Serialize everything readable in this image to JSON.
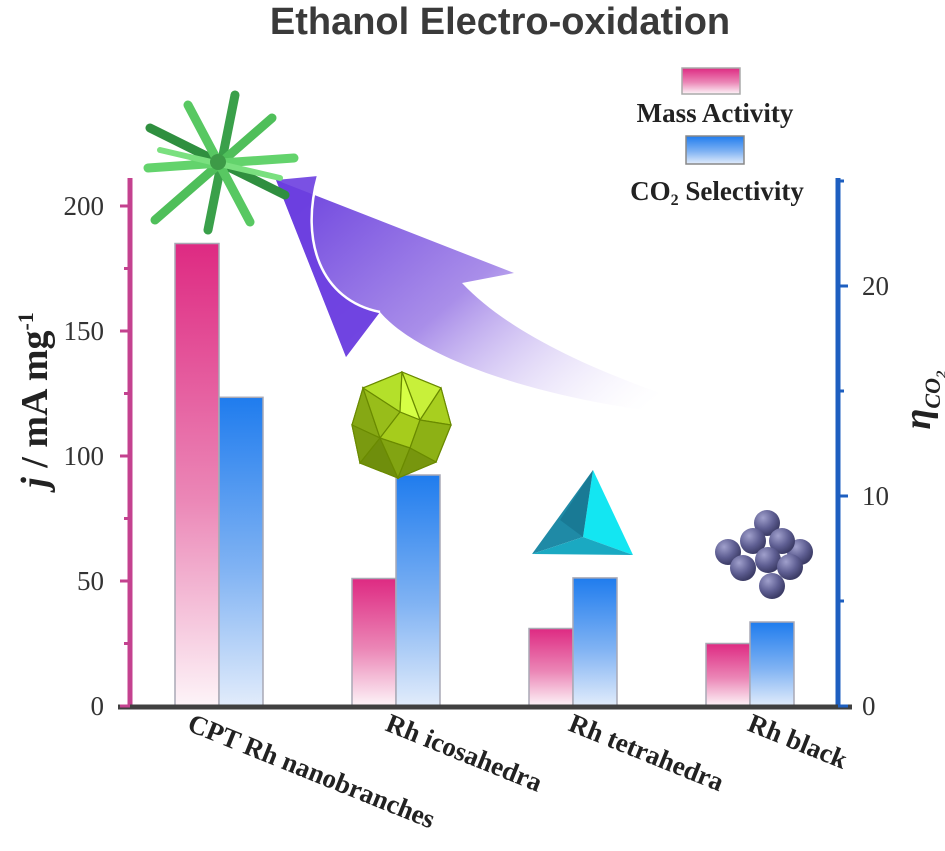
{
  "chart_data": {
    "type": "bar",
    "title": "Ethanol Electro-oxidation",
    "categories": [
      "CPT Rh nanobranches",
      "Rh icosahedra",
      "Rh tetrahedra",
      "Rh black"
    ],
    "series": [
      {
        "name": "Mass Activity",
        "axis": "left",
        "values": [
          185,
          51,
          31,
          25
        ]
      },
      {
        "name": "CO₂ Selectivity",
        "axis": "right",
        "values": [
          14.7,
          11.0,
          6.1,
          4.0
        ]
      }
    ],
    "y_left": {
      "label_italic": "j",
      "label_rest": " / mA mg",
      "label_sup": "-1",
      "ylim": [
        0,
        200
      ],
      "ticks": [
        0,
        50,
        100,
        150,
        200
      ]
    },
    "y_right": {
      "label_main": "η",
      "label_sub": "CO",
      "label_subsub": "2",
      "ylim": [
        0,
        20
      ],
      "ticks": [
        0,
        10,
        20
      ]
    },
    "legend": {
      "placement": "top-right",
      "items": [
        {
          "label": "Mass Activity"
        },
        {
          "label_main": "CO",
          "label_sub": "2",
          "label_rest": " Selectivity"
        }
      ]
    },
    "colors": {
      "mass_activity": "#de3287",
      "co2_selectivity": "#2a82ef",
      "left_axis": "#c4428f",
      "right_axis": "#1e5fc0",
      "x_axis": "#404040",
      "arrow": "#7b55e0"
    },
    "illustrations": [
      "nanobranch-star",
      "icosahedron",
      "tetrahedron",
      "sphere-cluster"
    ],
    "grid": false
  }
}
